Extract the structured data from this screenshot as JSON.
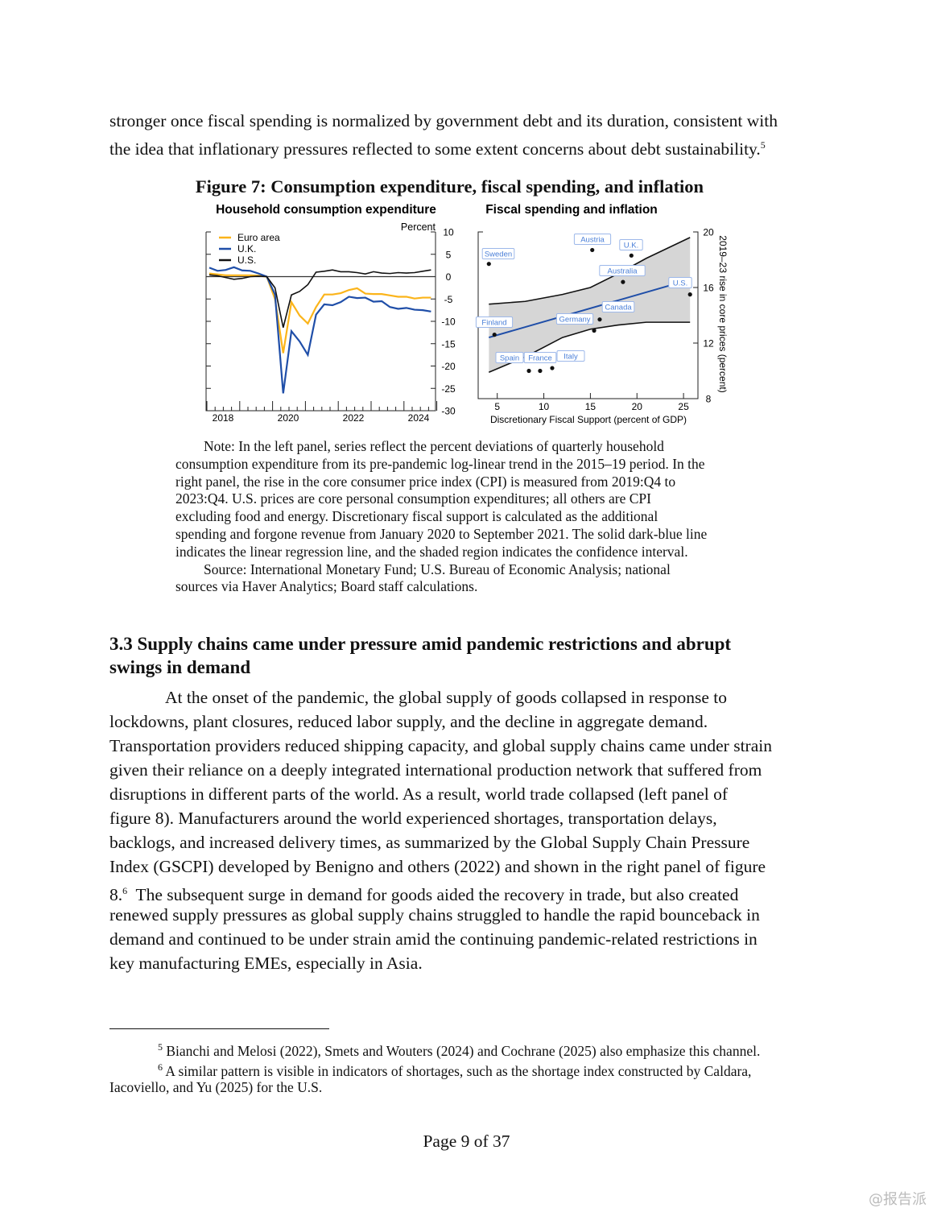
{
  "intro_lines": [
    "stronger once fiscal spending is normalized by government debt and its duration, consistent with",
    "the idea that inflationary pressures reflected to some extent concerns about debt sustainability."
  ],
  "intro_footnote_mark": "5",
  "figure": {
    "title": "Figure 7:  Consumption expenditure, fiscal spending, and inflation",
    "note_lines": [
      "Note: In the left panel, series reflect the percent deviations of quarterly household",
      "consumption expenditure from its pre-pandemic log-linear trend in the 2015–19 period.  In the",
      "right panel, the rise in the core consumer price index (CPI) is measured from 2019:Q4 to",
      "2023:Q4.  U.S. prices are core personal consumption expenditures; all others are CPI",
      "excluding food and energy.  Discretionary fiscal support is calculated as the additional",
      "spending and forgone revenue from January 2020 to September 2021.  The solid dark-blue line",
      "indicates the linear regression line, and the shaded region indicates the confidence interval.",
      "Source: International Monetary Fund; U.S. Bureau of Economic Analysis; national",
      "sources via Haver Analytics; Board staff calculations."
    ]
  },
  "chart_data": [
    {
      "type": "line",
      "title": "Household consumption expenditure",
      "ylabel": "Percent",
      "ylim": [
        -30,
        10
      ],
      "yticks": [
        "10",
        "5",
        "0",
        "-5",
        "-10",
        "-15",
        "-20",
        "-25",
        "-30"
      ],
      "xtick_labels": [
        "2018",
        "2020",
        "2022",
        "2024"
      ],
      "x": [
        "2018Q1",
        "2018Q2",
        "2018Q3",
        "2018Q4",
        "2019Q1",
        "2019Q2",
        "2019Q3",
        "2019Q4",
        "2020Q1",
        "2020Q2",
        "2020Q3",
        "2020Q4",
        "2021Q1",
        "2021Q2",
        "2021Q3",
        "2021Q4",
        "2022Q1",
        "2022Q2",
        "2022Q3",
        "2022Q4",
        "2023Q1",
        "2023Q2",
        "2023Q3",
        "2023Q4",
        "2024Q1",
        "2024Q2",
        "2024Q3",
        "2024Q4"
      ],
      "legend_position": "top-left",
      "series": [
        {
          "name": "Euro area",
          "color": "#fbb41a",
          "values": [
            0.7,
            0.5,
            0.3,
            0.3,
            0.3,
            0.3,
            0.2,
            0,
            -5,
            -17.1,
            -5.7,
            -8.7,
            -10.5,
            -6.8,
            -4,
            -4,
            -3.7,
            -3,
            -2.6,
            -3.8,
            -3.9,
            -3.9,
            -4.2,
            -4.5,
            -4.5,
            -4.9,
            -4.7,
            -4.7
          ]
        },
        {
          "name": "U.K.",
          "color": "#1f4ea8",
          "values": [
            2.0,
            1.3,
            1.5,
            2.1,
            1.4,
            1.3,
            0.7,
            0,
            -4,
            -26.1,
            -12.2,
            -14.5,
            -17.5,
            -8.5,
            -6.2,
            -6.4,
            -5.7,
            -4.5,
            -4.8,
            -4.7,
            -5.6,
            -5.5,
            -6.8,
            -7.2,
            -7,
            -7.4,
            -7.5,
            -7.8
          ]
        },
        {
          "name": "U.S.",
          "color": "#111111",
          "values": [
            0.4,
            0.2,
            -0.2,
            -0.6,
            -0.4,
            0,
            0.1,
            0,
            -2.5,
            -11.4,
            -4.1,
            -3.3,
            -1.8,
            1.0,
            1.2,
            1.5,
            1.1,
            1.1,
            0.9,
            0.6,
            1.1,
            0.8,
            0.7,
            0.9,
            0.8,
            0.9,
            1.2,
            1.5
          ]
        }
      ]
    },
    {
      "type": "scatter",
      "title": "Fiscal spending and inflation",
      "xlabel": "Discretionary Fiscal Support (percent of GDP)",
      "ylabel": "2019–23 rise in core prices (percent)",
      "xlim": [
        3.5,
        26.5
      ],
      "ylim": [
        8,
        20
      ],
      "xticks": [
        "5",
        "10",
        "15",
        "20",
        "25"
      ],
      "yticks": [
        "20",
        "16",
        "12",
        "8"
      ],
      "points": [
        {
          "label": "Sweden",
          "x": 4.1,
          "y": 17.7
        },
        {
          "label": "Austria",
          "x": 15.2,
          "y": 18.7
        },
        {
          "label": "U.K.",
          "x": 19.4,
          "y": 18.3
        },
        {
          "label": "Australia",
          "x": 18.5,
          "y": 16.4
        },
        {
          "label": "U.S.",
          "x": 25.7,
          "y": 15.5
        },
        {
          "label": "Canada",
          "x": 16.0,
          "y": 13.7
        },
        {
          "label": "Germany",
          "x": 15.4,
          "y": 12.9
        },
        {
          "label": "Finland",
          "x": 4.7,
          "y": 12.6
        },
        {
          "label": "Spain",
          "x": 8.4,
          "y": 10.0
        },
        {
          "label": "France",
          "x": 9.6,
          "y": 10.0
        },
        {
          "label": "Italy",
          "x": 10.9,
          "y": 10.2
        }
      ],
      "regression_line": {
        "color": "#1f4ea8",
        "x": [
          4.1,
          23.8
        ],
        "y": [
          12.4,
          16.2
        ]
      },
      "confidence_band": {
        "x": [
          4.1,
          8,
          12,
          15,
          18,
          21,
          25.7
        ],
        "upper": [
          14.8,
          15.0,
          15.5,
          16.0,
          17.0,
          18.1,
          19.6
        ],
        "lower": [
          9.9,
          11.0,
          12.4,
          13.0,
          13.3,
          13.5,
          13.5
        ]
      },
      "label_color": "#4a7fd8",
      "band_color": "#d6d6d6"
    }
  ],
  "section": {
    "heading_lines": [
      "3.3  Supply chains came under pressure amid pandemic restrictions and abrupt",
      "swings in demand"
    ],
    "body_lines": [
      "At the onset of the pandemic, the global supply of goods collapsed in response to",
      "lockdowns, plant closures, reduced labor supply, and the decline in aggregate demand.",
      "Transportation providers reduced shipping capacity, and global supply chains came under strain",
      "given their reliance on a deeply integrated international production network that suffered from",
      "disruptions in different parts of the world.  As a result, world trade collapsed (left panel of",
      "figure 8).  Manufacturers around the world experienced shortages, transportation delays,",
      "backlogs, and increased delivery times, as summarized by the Global Supply Chain Pressure",
      "Index (GSCPI) developed by Benigno and others (2022) and shown in the right panel of figure",
      "8.",
      "renewed supply pressures as global supply chains struggled to handle the rapid bounceback in",
      "demand and continued to be under strain amid the continuing pandemic-related restrictions in",
      "key manufacturing EMEs, especially in Asia."
    ],
    "line9_mark": "6",
    "line9_rest": "  The subsequent surge in demand for goods aided the recovery in trade, but also created"
  },
  "footnotes": [
    {
      "mark": "5",
      "text": " Bianchi and Melosi (2022), Smets and Wouters (2024) and Cochrane (2025) also emphasize this channel."
    },
    {
      "mark": "6",
      "text": " A similar pattern is visible in indicators of shortages, such as the shortage index constructed by Caldara,",
      "cont": "Iacoviello, and Yu (2025) for the U.S."
    }
  ],
  "page_number": "Page 9 of 37",
  "watermark": "@报告派"
}
